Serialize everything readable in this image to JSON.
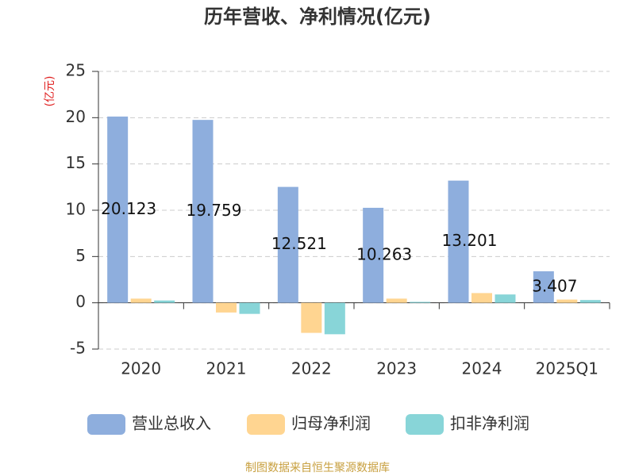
{
  "chart_data": {
    "type": "bar",
    "title": "历年营收、净利情况(亿元)",
    "y_label": "(亿元)",
    "categories": [
      "2020",
      "2021",
      "2022",
      "2023",
      "2024",
      "2025Q1"
    ],
    "series": [
      {
        "name": "营业总收入",
        "color": "#8eaedd",
        "values": [
          20.123,
          19.759,
          12.521,
          10.263,
          13.201,
          3.407
        ],
        "show_labels": true
      },
      {
        "name": "归母净利润",
        "color": "#ffd591",
        "values": [
          0.45,
          -1.05,
          -3.25,
          0.45,
          1.05,
          0.35
        ]
      },
      {
        "name": "扣非净利润",
        "color": "#88d5d8",
        "values": [
          0.25,
          -1.2,
          -3.4,
          0.1,
          0.9,
          0.3
        ]
      }
    ],
    "ylim": [
      -5,
      25
    ],
    "yticks": [
      -5,
      0,
      5,
      10,
      15,
      20,
      25
    ],
    "grid": true,
    "source": "制图数据来自恒生聚源数据库"
  }
}
